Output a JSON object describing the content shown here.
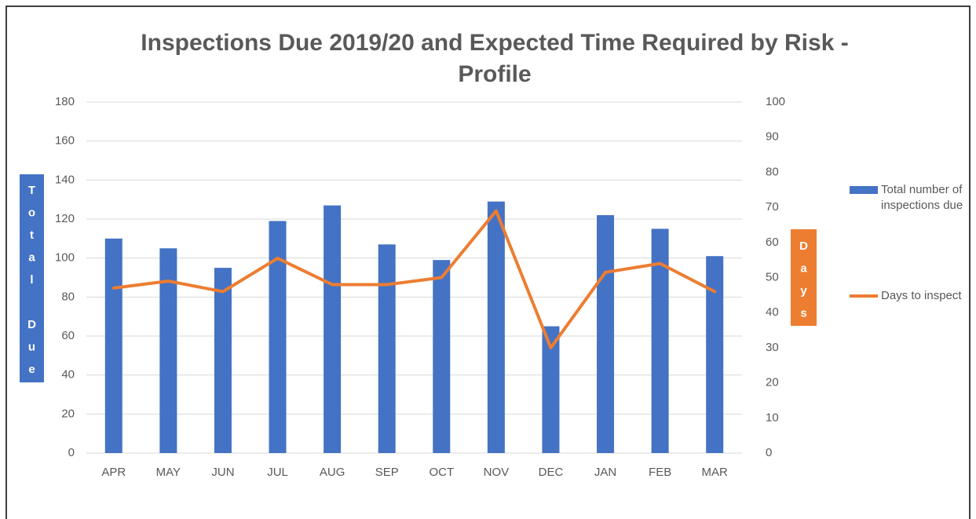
{
  "chart_data": {
    "type": "bar",
    "title": "Inspections Due 2019/20 and Expected Time Required by Risk - Profile",
    "y_label": "Total Due",
    "y2_label": "Days",
    "categories": [
      "APR",
      "MAY",
      "JUN",
      "JUL",
      "AUG",
      "SEP",
      "OCT",
      "NOV",
      "DEC",
      "JAN",
      "FEB",
      "MAR"
    ],
    "series": [
      {
        "name": "Total number of inspections due",
        "type": "bar",
        "color": "#4472c4",
        "values": [
          110,
          105,
          95,
          119,
          127,
          107,
          99,
          129,
          65,
          122,
          115,
          101
        ]
      },
      {
        "name": "Days to inspect",
        "type": "line",
        "axis": "y2",
        "color": "#ed7d31",
        "values": [
          47,
          49,
          46,
          55.5,
          48,
          48,
          50,
          69,
          30,
          51.5,
          54,
          46
        ]
      }
    ],
    "ylim": [
      0,
      180
    ],
    "yticks": [
      0,
      20,
      40,
      60,
      80,
      100,
      120,
      140,
      160,
      180
    ],
    "y2lim": [
      0,
      100
    ],
    "y2ticks": [
      0,
      10,
      20,
      30,
      40,
      50,
      60,
      70,
      80,
      90,
      100
    ],
    "grid": true,
    "legend": "right"
  }
}
